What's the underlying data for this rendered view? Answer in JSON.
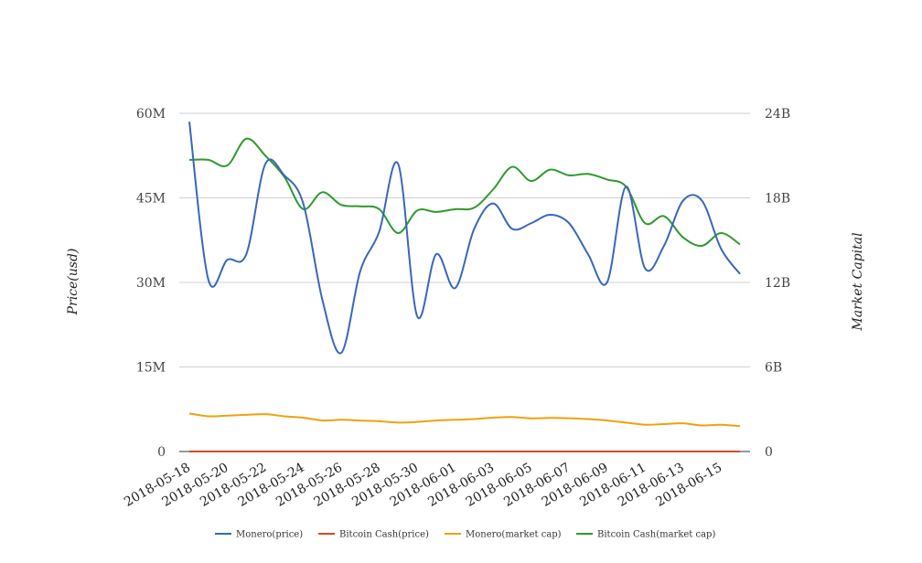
{
  "chart_data": {
    "type": "line",
    "title": "",
    "xlabel": "",
    "ylabel": "Price(usd)",
    "ylabel_right": "Market Capital",
    "x": [
      "2018-05-18",
      "2018-05-19",
      "2018-05-20",
      "2018-05-21",
      "2018-05-22",
      "2018-05-23",
      "2018-05-24",
      "2018-05-25",
      "2018-05-26",
      "2018-05-27",
      "2018-05-28",
      "2018-05-29",
      "2018-05-30",
      "2018-05-31",
      "2018-06-01",
      "2018-06-02",
      "2018-06-03",
      "2018-06-04",
      "2018-06-05",
      "2018-06-06",
      "2018-06-07",
      "2018-06-08",
      "2018-06-09",
      "2018-06-10",
      "2018-06-11",
      "2018-06-12",
      "2018-06-13",
      "2018-06-14",
      "2018-06-15",
      "2018-06-16"
    ],
    "xticks": [
      "2018-05-18",
      "2018-05-20",
      "2018-05-22",
      "2018-05-24",
      "2018-05-26",
      "2018-05-28",
      "2018-05-30",
      "2018-06-01",
      "2018-06-03",
      "2018-06-05",
      "2018-06-07",
      "2018-06-09",
      "2018-06-11",
      "2018-06-13",
      "2018-06-15"
    ],
    "ylim": [
      0,
      60000000
    ],
    "ylim_right": [
      0,
      24000000000
    ],
    "yticks_left": [
      "0",
      "15M",
      "30M",
      "45M",
      "60M"
    ],
    "yticks_right": [
      "0",
      "6B",
      "12B",
      "18B",
      "24B"
    ],
    "grid": true,
    "legend_position": "bottom",
    "series": [
      {
        "name": "Monero(price)",
        "axis": "left",
        "color": "#3a67b8",
        "values": [
          58500000,
          30500000,
          34000000,
          35000000,
          51000000,
          49000000,
          44000000,
          27000000,
          17500000,
          32000000,
          39000000,
          51000000,
          24000000,
          35000000,
          29000000,
          39500000,
          44000000,
          39500000,
          40500000,
          42000000,
          40500000,
          35000000,
          30000000,
          47000000,
          32500000,
          36500000,
          44500000,
          44500000,
          36000000,
          31500000
        ]
      },
      {
        "name": "Bitcoin Cash(price)",
        "axis": "left",
        "color": "#d84b1f",
        "values": [
          1300,
          1150,
          1180,
          1250,
          1260,
          1180,
          1100,
          1010,
          1050,
          1030,
          1040,
          990,
          1000,
          1050,
          1060,
          1080,
          1150,
          1220,
          1180,
          1200,
          1190,
          1180,
          1130,
          1060,
          1000,
          1010,
          980,
          900,
          920,
          880
        ]
      },
      {
        "name": "Monero(market cap)",
        "axis": "right",
        "color": "#f0a10c",
        "values": [
          2700000000,
          2500000000,
          2550000000,
          2600000000,
          2650000000,
          2500000000,
          2400000000,
          2200000000,
          2250000000,
          2200000000,
          2150000000,
          2050000000,
          2100000000,
          2200000000,
          2250000000,
          2300000000,
          2400000000,
          2450000000,
          2350000000,
          2380000000,
          2360000000,
          2300000000,
          2200000000,
          2050000000,
          1900000000,
          1950000000,
          2000000000,
          1850000000,
          1900000000,
          1800000000
        ]
      },
      {
        "name": "Bitcoin Cash(market cap)",
        "axis": "right",
        "color": "#2e9a2e",
        "values": [
          20700000000,
          20700000000,
          20300000000,
          22200000000,
          21000000000,
          19500000000,
          17200000000,
          18400000000,
          17500000000,
          17400000000,
          17200000000,
          15500000000,
          17100000000,
          17000000000,
          17200000000,
          17300000000,
          18600000000,
          20200000000,
          19200000000,
          20000000000,
          19600000000,
          19700000000,
          19300000000,
          18800000000,
          16200000000,
          16700000000,
          15200000000,
          14600000000,
          15500000000,
          14700000000
        ]
      }
    ]
  }
}
